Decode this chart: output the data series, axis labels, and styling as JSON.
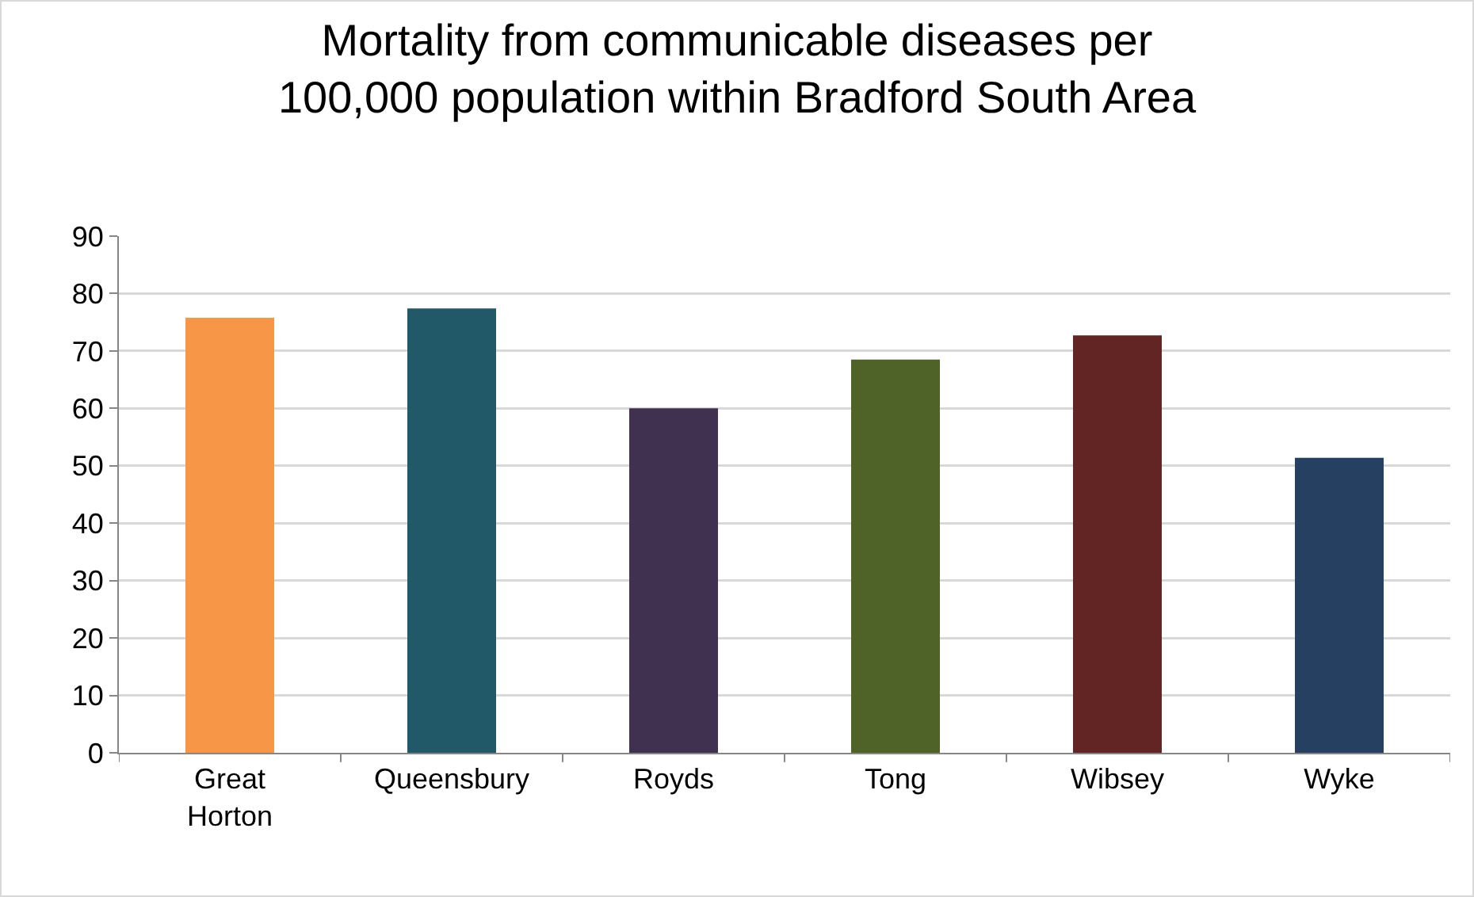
{
  "chart_data": {
    "type": "bar",
    "title": "Mortality from communicable diseases per 100,000 population within Bradford South Area",
    "categories": [
      "Great Horton",
      "Queensbury",
      "Royds",
      "Tong",
      "Wibsey",
      "Wyke"
    ],
    "values": [
      75.8,
      77.4,
      60,
      68.5,
      72.7,
      51.4
    ],
    "colors": [
      "#f79646",
      "#215968",
      "#403151",
      "#4f6228",
      "#632523",
      "#254061"
    ],
    "ylim": [
      0,
      90
    ],
    "yticks": [
      0,
      10,
      20,
      30,
      40,
      50,
      60,
      70,
      80,
      90
    ],
    "grid": "y",
    "legend": false
  }
}
